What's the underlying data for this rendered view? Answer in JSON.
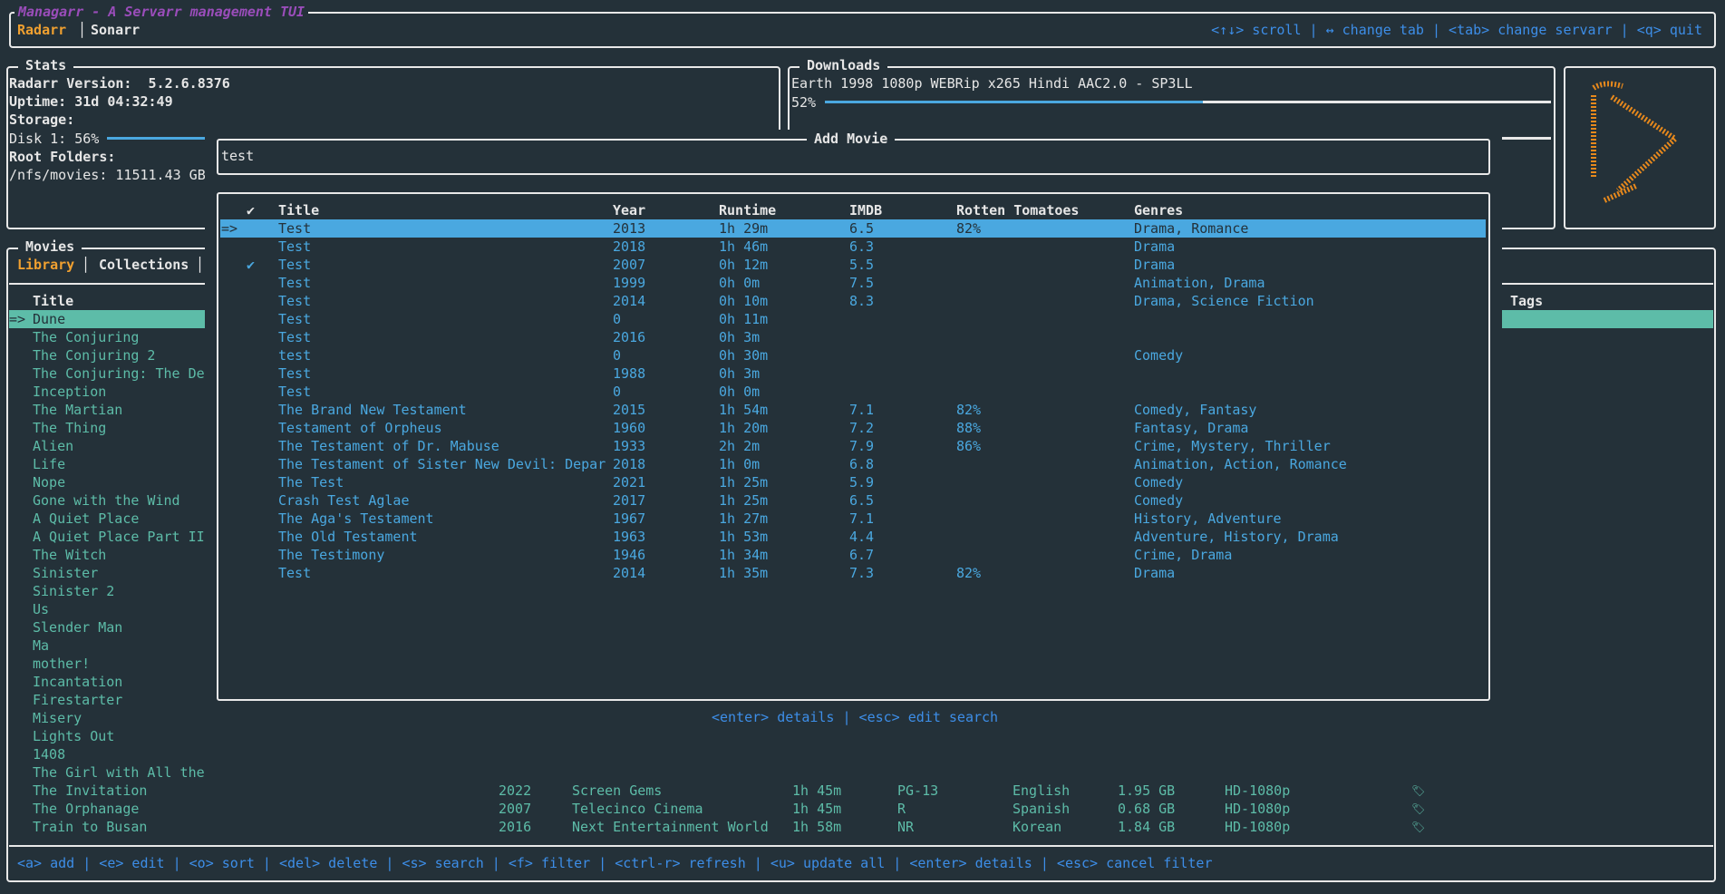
{
  "app": {
    "title": "Managarr - A Servarr management TUI",
    "tabs": [
      {
        "label": "Radarr",
        "active": true
      },
      {
        "label": "Sonarr",
        "active": false
      }
    ],
    "help": "<↑↓> scroll | ↔ change tab | <tab> change servarr | <q> quit"
  },
  "colors": {
    "background": "#243139",
    "accent_blue": "#4aa8e0",
    "accent_teal": "#5dbca8",
    "tab_active": "#f0a030",
    "title_purple": "#9a4dba",
    "logo_orange": "#e8891c"
  },
  "stats": {
    "title": "Stats",
    "version_label": "Radarr Version:  5.2.6.8376",
    "uptime_label": "Uptime: 31d 04:32:49",
    "storage_label": "Storage:",
    "disk_label": "Disk 1: 56%",
    "disk_percent": 56,
    "root_label": "Root Folders:",
    "root_value": "/nfs/movies: 11511.43 GB"
  },
  "downloads": {
    "title": "Downloads",
    "items": [
      {
        "name": "Earth 1998 1080p WEBRip x265 Hindi AAC2.0 - SP3LL",
        "percent_label": "52%",
        "percent": 52
      }
    ]
  },
  "logo": {
    "icon": "radarr-play-logo"
  },
  "movies": {
    "title": "Movies",
    "tabs": [
      {
        "label": "Library",
        "active": true
      },
      {
        "label": "Collections",
        "active": false
      }
    ],
    "columns": {
      "title": "Title",
      "tags": "Tags"
    },
    "selected_marker": "=>",
    "titles": [
      "Dune",
      "The Conjuring",
      "The Conjuring 2",
      "The Conjuring: The De",
      "Inception",
      "The Martian",
      "The Thing",
      "Alien",
      "Life",
      "Nope",
      "Gone with the Wind",
      "A Quiet Place",
      "A Quiet Place Part II",
      "The Witch",
      "Sinister",
      "Sinister 2",
      "Us",
      "Slender Man",
      "Ma",
      "mother!",
      "Incantation",
      "Firestarter",
      "Misery",
      "Lights Out",
      "1408",
      "The Girl with All the"
    ],
    "full_rows": [
      {
        "title": "The Invitation",
        "year": "2022",
        "studio": "Screen Gems",
        "runtime": "1h 45m",
        "rating": "PG-13",
        "language": "English",
        "size": "1.95 GB",
        "quality": "HD-1080p",
        "icon": "monitored-bookmark-icon"
      },
      {
        "title": "The Orphanage",
        "year": "2007",
        "studio": "Telecinco Cinema",
        "runtime": "1h 45m",
        "rating": "R",
        "language": "Spanish",
        "size": "0.68 GB",
        "quality": "HD-1080p",
        "icon": "monitored-bookmark-icon"
      },
      {
        "title": "Train to Busan",
        "year": "2016",
        "studio": "Next Entertainment World",
        "runtime": "1h 58m",
        "rating": "NR",
        "language": "Korean",
        "size": "1.84 GB",
        "quality": "HD-1080p",
        "icon": "monitored-bookmark-icon"
      }
    ],
    "help": "<a> add | <e> edit | <o> sort | <del> delete | <s> search | <f> filter | <ctrl-r> refresh | <u> update all | <enter> details | <esc> cancel filter"
  },
  "add_movie": {
    "title": "Add Movie",
    "search_value": "test",
    "columns": {
      "check": "✔",
      "title": "Title",
      "year": "Year",
      "runtime": "Runtime",
      "imdb": "IMDB",
      "rt": "Rotten Tomatoes",
      "genres": "Genres"
    },
    "selected_marker": "=>",
    "results": [
      {
        "title": "Test",
        "year": "2013",
        "runtime": "1h 29m",
        "imdb": "6.5",
        "rt": "82%",
        "genres": "Drama, Romance",
        "in_library": false
      },
      {
        "title": "Test",
        "year": "2018",
        "runtime": "1h 46m",
        "imdb": "6.3",
        "rt": "",
        "genres": "Drama",
        "in_library": false
      },
      {
        "title": "Test",
        "year": "2007",
        "runtime": "0h 12m",
        "imdb": "5.5",
        "rt": "",
        "genres": "Drama",
        "in_library": true
      },
      {
        "title": "Test",
        "year": "1999",
        "runtime": "0h 0m",
        "imdb": "7.5",
        "rt": "",
        "genres": "Animation, Drama",
        "in_library": false
      },
      {
        "title": "Test",
        "year": "2014",
        "runtime": "0h 10m",
        "imdb": "8.3",
        "rt": "",
        "genres": "Drama, Science Fiction",
        "in_library": false
      },
      {
        "title": "Test",
        "year": "0",
        "runtime": "0h 11m",
        "imdb": "",
        "rt": "",
        "genres": "",
        "in_library": false
      },
      {
        "title": "Test",
        "year": "2016",
        "runtime": "0h 3m",
        "imdb": "",
        "rt": "",
        "genres": "",
        "in_library": false
      },
      {
        "title": "test",
        "year": "0",
        "runtime": "0h 30m",
        "imdb": "",
        "rt": "",
        "genres": "Comedy",
        "in_library": false
      },
      {
        "title": "Test",
        "year": "1988",
        "runtime": "0h 3m",
        "imdb": "",
        "rt": "",
        "genres": "",
        "in_library": false
      },
      {
        "title": "Test",
        "year": "0",
        "runtime": "0h 0m",
        "imdb": "",
        "rt": "",
        "genres": "",
        "in_library": false
      },
      {
        "title": "The Brand New Testament",
        "year": "2015",
        "runtime": "1h 54m",
        "imdb": "7.1",
        "rt": "82%",
        "genres": "Comedy, Fantasy",
        "in_library": false
      },
      {
        "title": "Testament of Orpheus",
        "year": "1960",
        "runtime": "1h 20m",
        "imdb": "7.2",
        "rt": "88%",
        "genres": "Fantasy, Drama",
        "in_library": false
      },
      {
        "title": "The Testament of Dr. Mabuse",
        "year": "1933",
        "runtime": "2h 2m",
        "imdb": "7.9",
        "rt": "86%",
        "genres": "Crime, Mystery, Thriller",
        "in_library": false
      },
      {
        "title": "The Testament of Sister New Devil: Depar",
        "year": "2018",
        "runtime": "1h 0m",
        "imdb": "6.8",
        "rt": "",
        "genres": "Animation, Action, Romance",
        "in_library": false
      },
      {
        "title": "The Test",
        "year": "2021",
        "runtime": "1h 25m",
        "imdb": "5.9",
        "rt": "",
        "genres": "Comedy",
        "in_library": false
      },
      {
        "title": "Crash Test Aglae",
        "year": "2017",
        "runtime": "1h 25m",
        "imdb": "6.5",
        "rt": "",
        "genres": "Comedy",
        "in_library": false
      },
      {
        "title": "The Aga's Testament",
        "year": "1967",
        "runtime": "1h 27m",
        "imdb": "7.1",
        "rt": "",
        "genres": "History, Adventure",
        "in_library": false
      },
      {
        "title": "The Old Testament",
        "year": "1963",
        "runtime": "1h 53m",
        "imdb": "4.4",
        "rt": "",
        "genres": "Adventure, History, Drama",
        "in_library": false
      },
      {
        "title": "The Testimony",
        "year": "1946",
        "runtime": "1h 34m",
        "imdb": "6.7",
        "rt": "",
        "genres": "Crime, Drama",
        "in_library": false
      },
      {
        "title": "Test",
        "year": "2014",
        "runtime": "1h 35m",
        "imdb": "7.3",
        "rt": "82%",
        "genres": "Drama",
        "in_library": false
      }
    ],
    "help": "<enter> details | <esc> edit search"
  }
}
